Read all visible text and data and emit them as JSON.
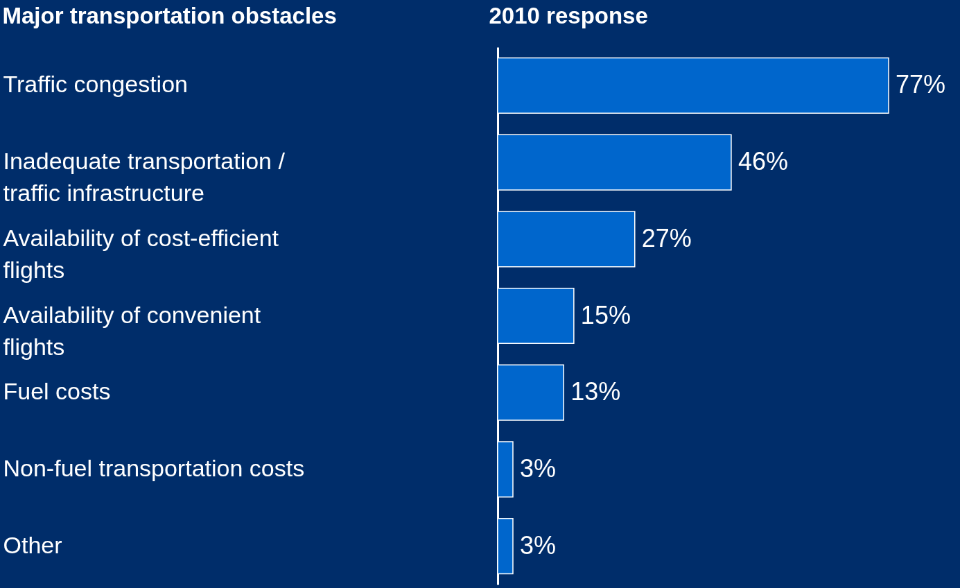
{
  "chart_data": {
    "type": "bar",
    "orientation": "horizontal",
    "ylabel": "Major transportation obstacles",
    "xlabel": "2010 response",
    "categories": [
      "Traffic congestion",
      "Inadequate transportation / traffic infrastructure",
      "Availability of cost-efficient flights",
      "Availability of convenient flights",
      "Fuel costs",
      "Non-fuel transportation costs",
      "Other"
    ],
    "values": [
      77,
      46,
      27,
      15,
      13,
      3,
      3
    ],
    "value_labels": [
      "77%",
      "46%",
      "27%",
      "15%",
      "13%",
      "3%",
      "3%"
    ],
    "color": "#0066cc"
  }
}
